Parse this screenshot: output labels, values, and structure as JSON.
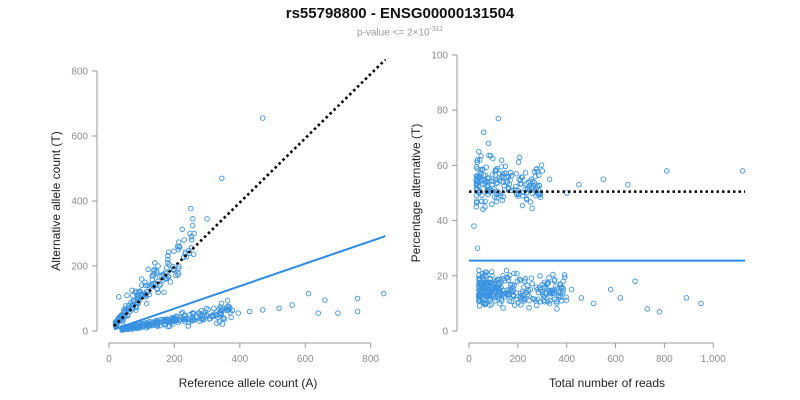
{
  "header": {
    "title": "rs55798800 - ENSG00000131504",
    "subtitle_prefix": "p-value <= 2×10",
    "subtitle_exponent": "-311"
  },
  "colors": {
    "points": "#3a93e0",
    "fit": "#2b8be6",
    "expected": "#000000",
    "axis": "#9a9a9a"
  },
  "chart_data": [
    {
      "type": "scatter",
      "name": "allele-counts",
      "xlabel": "Reference allele count (A)",
      "ylabel": "Alternative allele count (T)",
      "xlim": [
        0,
        850
      ],
      "ylim": [
        0,
        800
      ],
      "x_ticks": [
        0,
        200,
        400,
        600,
        800
      ],
      "y_ticks": [
        0,
        200,
        400,
        600,
        800
      ],
      "x_tick_labels": [
        "0",
        "200",
        "400",
        "600",
        "800"
      ],
      "y_tick_labels": [
        "0",
        "200",
        "400",
        "600",
        "800"
      ],
      "expected_line": {
        "style": "dotted",
        "x": [
          15,
          845
        ],
        "y": [
          15,
          835
        ]
      },
      "fit_line": {
        "style": "solid",
        "x": [
          15,
          845
        ],
        "y": [
          5,
          292
        ]
      },
      "outliers": [
        [
          470,
          655
        ],
        [
          345,
          470
        ],
        [
          300,
          345
        ],
        [
          610,
          115
        ],
        [
          840,
          115
        ],
        [
          760,
          100
        ],
        [
          660,
          95
        ],
        [
          560,
          80
        ],
        [
          640,
          55
        ],
        [
          700,
          55
        ],
        [
          760,
          60
        ],
        [
          470,
          65
        ],
        [
          520,
          70
        ],
        [
          430,
          60
        ],
        [
          395,
          55
        ],
        [
          260,
          300
        ],
        [
          230,
          280
        ],
        [
          210,
          260
        ],
        [
          180,
          220
        ],
        [
          140,
          210
        ],
        [
          150,
          200
        ],
        [
          120,
          190
        ],
        [
          100,
          160
        ],
        [
          110,
          150
        ],
        [
          70,
          125
        ],
        [
          90,
          120
        ],
        [
          55,
          110
        ],
        [
          30,
          105
        ]
      ],
      "cluster_high": {
        "n": 160,
        "x_range": [
          20,
          260
        ],
        "ratio_mean": 1.1,
        "ratio_sd": 0.25
      },
      "cluster_low": {
        "n": 260,
        "x_range": [
          40,
          380
        ],
        "ratio_mean": 0.17,
        "ratio_sd": 0.06
      }
    },
    {
      "type": "scatter",
      "name": "percent-alternative",
      "xlabel": "Total number of reads",
      "ylabel": "Percentage alternative (T)",
      "xlim": [
        0,
        1130
      ],
      "ylim": [
        0,
        100
      ],
      "x_ticks": [
        0,
        200,
        400,
        600,
        800,
        1000
      ],
      "y_ticks": [
        0,
        20,
        40,
        60,
        80,
        100
      ],
      "x_tick_labels": [
        "0",
        "200",
        "400",
        "600",
        "800",
        "1,000"
      ],
      "y_tick_labels": [
        "0",
        "20",
        "40",
        "60",
        "80",
        "100"
      ],
      "expected_line": {
        "style": "dotted",
        "y": 50.5
      },
      "fit_line": {
        "style": "solid",
        "y": 25.5
      },
      "outliers": [
        [
          1120,
          58
        ],
        [
          810,
          58
        ],
        [
          650,
          53
        ],
        [
          550,
          55
        ],
        [
          450,
          53
        ],
        [
          400,
          50
        ],
        [
          330,
          55
        ],
        [
          300,
          58
        ],
        [
          950,
          10
        ],
        [
          890,
          12
        ],
        [
          780,
          7
        ],
        [
          730,
          8
        ],
        [
          680,
          18
        ],
        [
          620,
          12
        ],
        [
          580,
          15
        ],
        [
          510,
          10
        ],
        [
          460,
          12
        ],
        [
          420,
          15
        ],
        [
          360,
          8
        ],
        [
          330,
          10
        ],
        [
          60,
          72
        ],
        [
          80,
          68
        ],
        [
          120,
          77
        ],
        [
          40,
          65
        ],
        [
          30,
          45
        ],
        [
          20,
          38
        ],
        [
          35,
          30
        ]
      ],
      "cluster_high": {
        "n": 180,
        "x_range": [
          30,
          300
        ],
        "pct_mean": 53,
        "pct_sd": 6
      },
      "cluster_low": {
        "n": 280,
        "x_range": [
          40,
          400
        ],
        "pct_mean": 15,
        "pct_sd": 4
      }
    }
  ]
}
